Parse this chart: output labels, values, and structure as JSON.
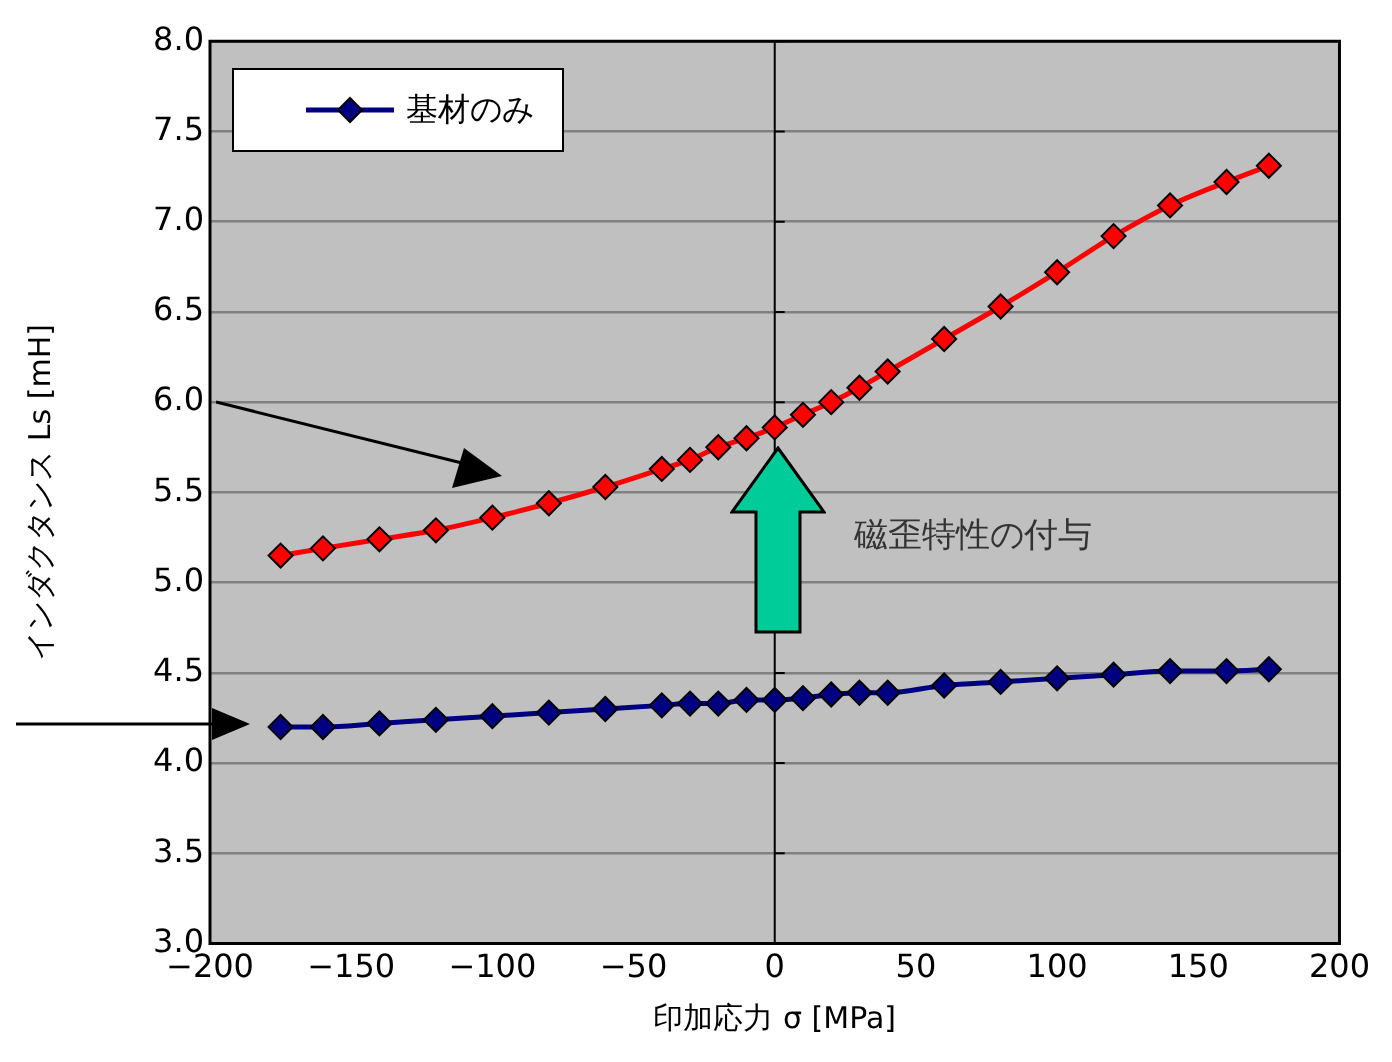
{
  "chart_data": {
    "type": "line",
    "xlabel": "印加応力 σ [MPa]",
    "ylabel": "インダクタンス Ls [mH]",
    "x": [
      -175,
      -160,
      -140,
      -120,
      -100,
      -80,
      -60,
      -40,
      -30,
      -20,
      -10,
      0,
      10,
      20,
      30,
      40,
      60,
      80,
      100,
      120,
      140,
      160,
      175
    ],
    "series": [
      {
        "color": "#ff0000",
        "values": [
          5.15,
          5.19,
          5.24,
          5.29,
          5.36,
          5.44,
          5.53,
          5.63,
          5.68,
          5.75,
          5.8,
          5.86,
          5.93,
          6.0,
          6.08,
          6.17,
          6.35,
          6.53,
          6.72,
          6.92,
          7.09,
          7.22,
          7.31
        ]
      },
      {
        "name": "基材のみ",
        "color": "#000080",
        "values": [
          4.2,
          4.2,
          4.22,
          4.24,
          4.26,
          4.28,
          4.3,
          4.32,
          4.33,
          4.33,
          4.35,
          4.35,
          4.36,
          4.38,
          4.39,
          4.39,
          4.43,
          4.45,
          4.47,
          4.49,
          4.51,
          4.51,
          4.52
        ]
      }
    ],
    "xlim": [
      -200,
      200
    ],
    "xticks": [
      -200,
      -150,
      -100,
      -50,
      0,
      50,
      100,
      150,
      200
    ],
    "ylim": [
      3.0,
      8.0
    ],
    "yticks": [
      {
        "value": 3.0,
        "label": "3.0"
      },
      {
        "value": 3.5,
        "label": "3.5"
      },
      {
        "value": 4.0,
        "label": "4.0"
      },
      {
        "value": 4.5,
        "label": "4.5"
      },
      {
        "value": 5.0,
        "label": "5.0"
      },
      {
        "value": 5.5,
        "label": "5.5"
      },
      {
        "value": 6.0,
        "label": "6.0"
      },
      {
        "value": 6.5,
        "label": "6.5"
      },
      {
        "value": 7.0,
        "label": "7.0"
      },
      {
        "value": 7.5,
        "label": "7.5"
      },
      {
        "value": 8.0,
        "label": "8.0"
      }
    ],
    "ref_lines": [
      {
        "axis": "x",
        "value": 0,
        "color": "#000000"
      }
    ],
    "annotations": [
      "磁歪特性の付与"
    ],
    "grid": "y",
    "legend": "top left",
    "marker": "diamond",
    "line_style": "solid"
  }
}
